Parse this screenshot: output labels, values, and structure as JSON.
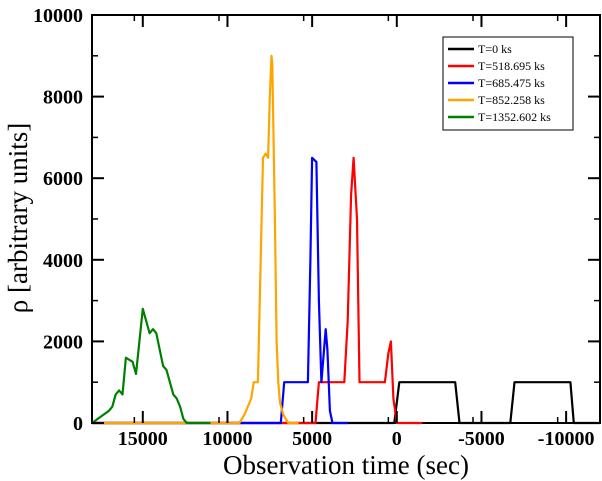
{
  "chart_data": {
    "type": "line",
    "title": "",
    "xlabel": "Observation time (sec)",
    "ylabel": "ρ [arbitrary units]",
    "xlim": [
      18000,
      -12000
    ],
    "ylim": [
      0,
      10000
    ],
    "x_ticks": [
      15000,
      10000,
      5000,
      0,
      -5000,
      -10000
    ],
    "x_tick_labels": [
      "15000",
      "10000",
      "5000",
      "0",
      "-5000",
      "-10000"
    ],
    "y_ticks": [
      0,
      2000,
      4000,
      6000,
      8000,
      10000
    ],
    "y_tick_labels": [
      "0",
      "2000",
      "4000",
      "6000",
      "8000",
      "10000"
    ],
    "legend_position": "top-right",
    "series": [
      {
        "name": "T=0 ks",
        "color": "#000000",
        "x": [
          18000,
          150,
          -150,
          -3450,
          -3700,
          -6700,
          -6950,
          -10250,
          -10450,
          -12000
        ],
        "y": [
          0,
          0,
          1000,
          1000,
          0,
          0,
          1000,
          1000,
          0,
          0
        ]
      },
      {
        "name": "T=518.695 ks",
        "color": "#ff0000",
        "x": [
          18000,
          4800,
          4600,
          3100,
          2900,
          2700,
          2550,
          2350,
          2200,
          1900,
          700,
          500,
          350,
          200,
          0,
          -1500
        ],
        "y": [
          0,
          0,
          1000,
          1000,
          2500,
          5600,
          6500,
          5000,
          1000,
          1000,
          1000,
          1700,
          2000,
          600,
          0,
          0
        ]
      },
      {
        "name": "T=685.475 ks",
        "color": "#0000ff",
        "x": [
          18000,
          6850,
          6650,
          5250,
          5100,
          5000,
          4750,
          4600,
          4450,
          4200,
          4100,
          3950,
          3800,
          2900
        ],
        "y": [
          0,
          0,
          1000,
          1000,
          4000,
          6500,
          6400,
          3000,
          1000,
          2300,
          1800,
          300,
          0,
          0
        ]
      },
      {
        "name": "T=852.258 ks",
        "color": "#ffa500",
        "x": [
          18000,
          9300,
          9000,
          8600,
          8450,
          8200,
          7900,
          7750,
          7600,
          7500,
          7400,
          7350,
          7200,
          7100,
          7000,
          6900,
          6700,
          6400,
          5800
        ],
        "y": [
          0,
          0,
          200,
          600,
          1000,
          1000,
          6500,
          6600,
          6500,
          8000,
          9000,
          8800,
          5000,
          2000,
          1000,
          500,
          200,
          0,
          0
        ]
      },
      {
        "name": "T=1352.602 ks",
        "color": "#008000",
        "x": [
          18000,
          17500,
          17000,
          16800,
          16600,
          16400,
          16200,
          16000,
          15800,
          15600,
          15400,
          15200,
          15000,
          14800,
          14600,
          14400,
          14200,
          14000,
          13800,
          13600,
          13400,
          13200,
          13000,
          12800,
          12600,
          12400,
          12000,
          11000
        ],
        "y": [
          0,
          150,
          300,
          400,
          700,
          800,
          700,
          1600,
          1550,
          1500,
          1200,
          2000,
          2800,
          2500,
          2200,
          2300,
          2200,
          1800,
          1400,
          1300,
          1000,
          700,
          600,
          400,
          100,
          0,
          0,
          0
        ]
      }
    ]
  }
}
